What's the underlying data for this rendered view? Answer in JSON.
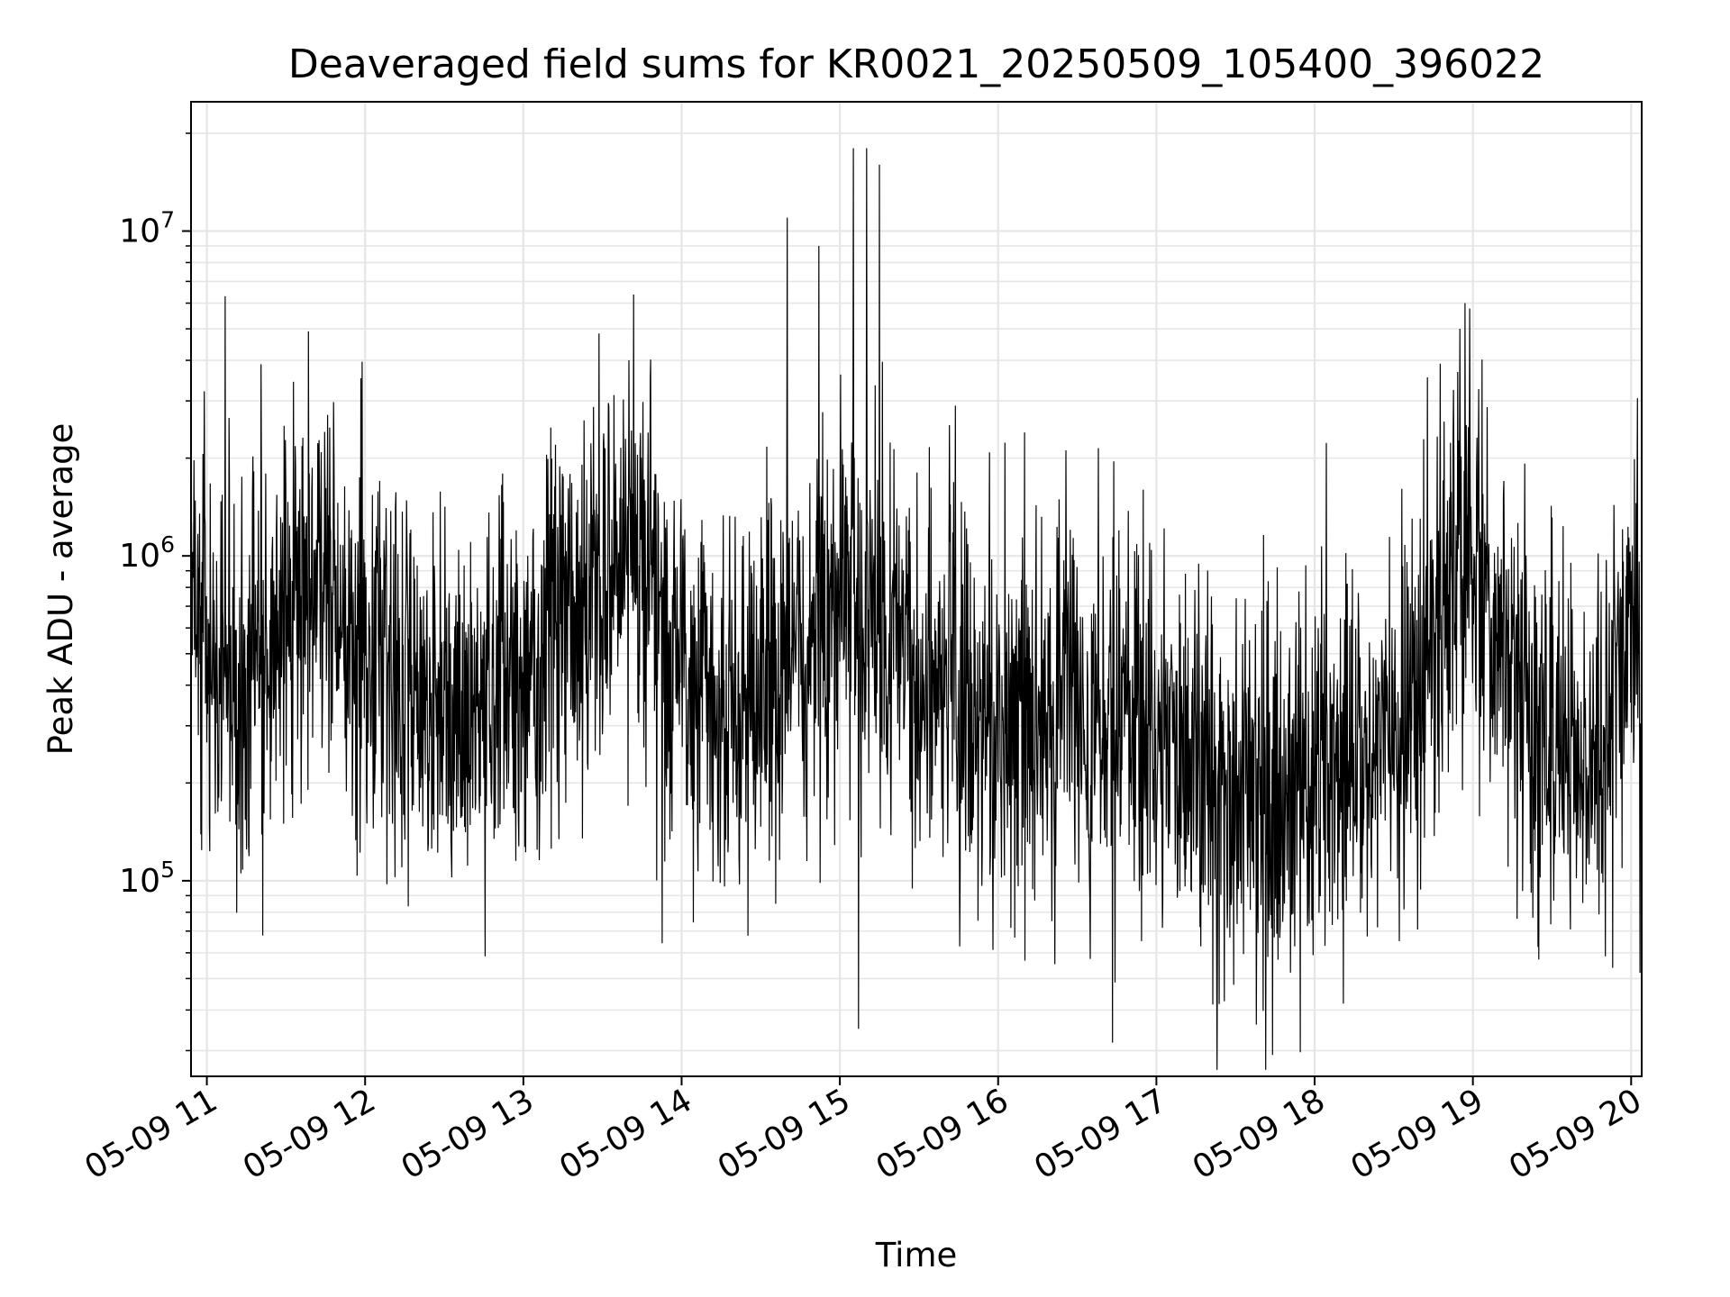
{
  "chart_data": {
    "type": "line",
    "title": "Deaveraged field sums for KR0021_20250509_105400_396022",
    "xlabel": "Time",
    "ylabel": "Peak ADU - average",
    "y_scale": "log",
    "xlim": [
      "2025-05-09 10:54",
      "2025-05-09 20:04"
    ],
    "ylim": [
      25000,
      25000000
    ],
    "x_tick_labels": [
      "05-09 11",
      "05-09 12",
      "05-09 13",
      "05-09 14",
      "05-09 15",
      "05-09 16",
      "05-09 17",
      "05-09 18",
      "05-09 19",
      "05-09 20"
    ],
    "y_ticks": [
      {
        "base": "10",
        "exp": "5",
        "value": 100000
      },
      {
        "base": "10",
        "exp": "6",
        "value": 1000000
      },
      {
        "base": "10",
        "exp": "7",
        "value": 10000000
      }
    ],
    "grid": true,
    "line_color": "#000000",
    "grid_color": "#e6e6e6",
    "series": [
      {
        "x": [
          "2025-05-09 10:55",
          "2025-05-09 11:00",
          "2025-05-09 11:05",
          "2025-05-09 11:10",
          "2025-05-09 11:15",
          "2025-05-09 11:20",
          "2025-05-09 11:25",
          "2025-05-09 11:30",
          "2025-05-09 11:35",
          "2025-05-09 11:40",
          "2025-05-09 11:45",
          "2025-05-09 11:50",
          "2025-05-09 11:55",
          "2025-05-09 12:00",
          "2025-05-09 12:05",
          "2025-05-09 12:10",
          "2025-05-09 12:15",
          "2025-05-09 12:20",
          "2025-05-09 12:25",
          "2025-05-09 12:30",
          "2025-05-09 12:35",
          "2025-05-09 12:40",
          "2025-05-09 12:45",
          "2025-05-09 12:50",
          "2025-05-09 12:55",
          "2025-05-09 13:00",
          "2025-05-09 13:05",
          "2025-05-09 13:10",
          "2025-05-09 13:15",
          "2025-05-09 13:20",
          "2025-05-09 13:25",
          "2025-05-09 13:30",
          "2025-05-09 13:35",
          "2025-05-09 13:40",
          "2025-05-09 13:45",
          "2025-05-09 13:50",
          "2025-05-09 13:55",
          "2025-05-09 14:00",
          "2025-05-09 14:05",
          "2025-05-09 14:10",
          "2025-05-09 14:15",
          "2025-05-09 14:20",
          "2025-05-09 14:25",
          "2025-05-09 14:30",
          "2025-05-09 14:35",
          "2025-05-09 14:40",
          "2025-05-09 14:45",
          "2025-05-09 14:50",
          "2025-05-09 14:55",
          "2025-05-09 15:00",
          "2025-05-09 15:05",
          "2025-05-09 15:10",
          "2025-05-09 15:15",
          "2025-05-09 15:20",
          "2025-05-09 15:25",
          "2025-05-09 15:30",
          "2025-05-09 15:35",
          "2025-05-09 15:40",
          "2025-05-09 15:45",
          "2025-05-09 15:50",
          "2025-05-09 15:55",
          "2025-05-09 16:00",
          "2025-05-09 16:05",
          "2025-05-09 16:10",
          "2025-05-09 16:15",
          "2025-05-09 16:20",
          "2025-05-09 16:25",
          "2025-05-09 16:30",
          "2025-05-09 16:35",
          "2025-05-09 16:40",
          "2025-05-09 16:45",
          "2025-05-09 16:50",
          "2025-05-09 16:55",
          "2025-05-09 17:00",
          "2025-05-09 17:05",
          "2025-05-09 17:10",
          "2025-05-09 17:15",
          "2025-05-09 17:20",
          "2025-05-09 17:25",
          "2025-05-09 17:30",
          "2025-05-09 17:35",
          "2025-05-09 17:40",
          "2025-05-09 17:45",
          "2025-05-09 17:50",
          "2025-05-09 17:55",
          "2025-05-09 18:00",
          "2025-05-09 18:05",
          "2025-05-09 18:10",
          "2025-05-09 18:15",
          "2025-05-09 18:20",
          "2025-05-09 18:25",
          "2025-05-09 18:30",
          "2025-05-09 18:35",
          "2025-05-09 18:40",
          "2025-05-09 18:45",
          "2025-05-09 18:50",
          "2025-05-09 18:55",
          "2025-05-09 19:00",
          "2025-05-09 19:05",
          "2025-05-09 19:10",
          "2025-05-09 19:15",
          "2025-05-09 19:20",
          "2025-05-09 19:25",
          "2025-05-09 19:30",
          "2025-05-09 19:35",
          "2025-05-09 19:40",
          "2025-05-09 19:45",
          "2025-05-09 19:50",
          "2025-05-09 19:55",
          "2025-05-09 20:00",
          "2025-05-09 20:04"
        ],
        "y": [
          900000,
          600000,
          450000,
          380000,
          350000,
          400000,
          450000,
          500000,
          600000,
          700000,
          800000,
          650000,
          550000,
          500000,
          480000,
          450000,
          400000,
          380000,
          350000,
          320000,
          300000,
          300000,
          350000,
          400000,
          420000,
          450000,
          500000,
          550000,
          600000,
          650000,
          750000,
          850000,
          950000,
          900000,
          800000,
          700000,
          600000,
          550000,
          450000,
          380000,
          350000,
          330000,
          350000,
          380000,
          420000,
          450000,
          500000,
          600000,
          750000,
          900000,
          700000,
          550000,
          500000,
          450000,
          420000,
          400000,
          380000,
          360000,
          340000,
          320000,
          300000,
          320000,
          340000,
          330000,
          310000,
          300000,
          320000,
          330000,
          310000,
          300000,
          280000,
          270000,
          260000,
          250000,
          260000,
          250000,
          240000,
          220000,
          200000,
          190000,
          180000,
          170000,
          180000,
          200000,
          210000,
          220000,
          230000,
          240000,
          250000,
          260000,
          280000,
          300000,
          350000,
          420000,
          550000,
          750000,
          950000,
          850000,
          700000,
          550000,
          420000,
          350000,
          300000,
          270000,
          250000,
          240000,
          260000,
          350000,
          450000,
          500000,
          480000
        ],
        "spikes": [
          {
            "x": "2025-05-09 13:40",
            "y": 4000000
          },
          {
            "x": "2025-05-09 14:40",
            "y": 11000000
          },
          {
            "x": "2025-05-09 14:52",
            "y": 9000000
          },
          {
            "x": "2025-05-09 15:05",
            "y": 18000000
          },
          {
            "x": "2025-05-09 15:10",
            "y": 18000000
          },
          {
            "x": "2025-05-09 15:15",
            "y": 16000000
          },
          {
            "x": "2025-05-09 15:07",
            "y": 35000
          },
          {
            "x": "2025-05-09 18:57",
            "y": 6000000
          },
          {
            "x": "2025-05-09 16:10",
            "y": 2400000
          },
          {
            "x": "2025-05-09 16:55",
            "y": 1600000
          }
        ]
      }
    ]
  }
}
